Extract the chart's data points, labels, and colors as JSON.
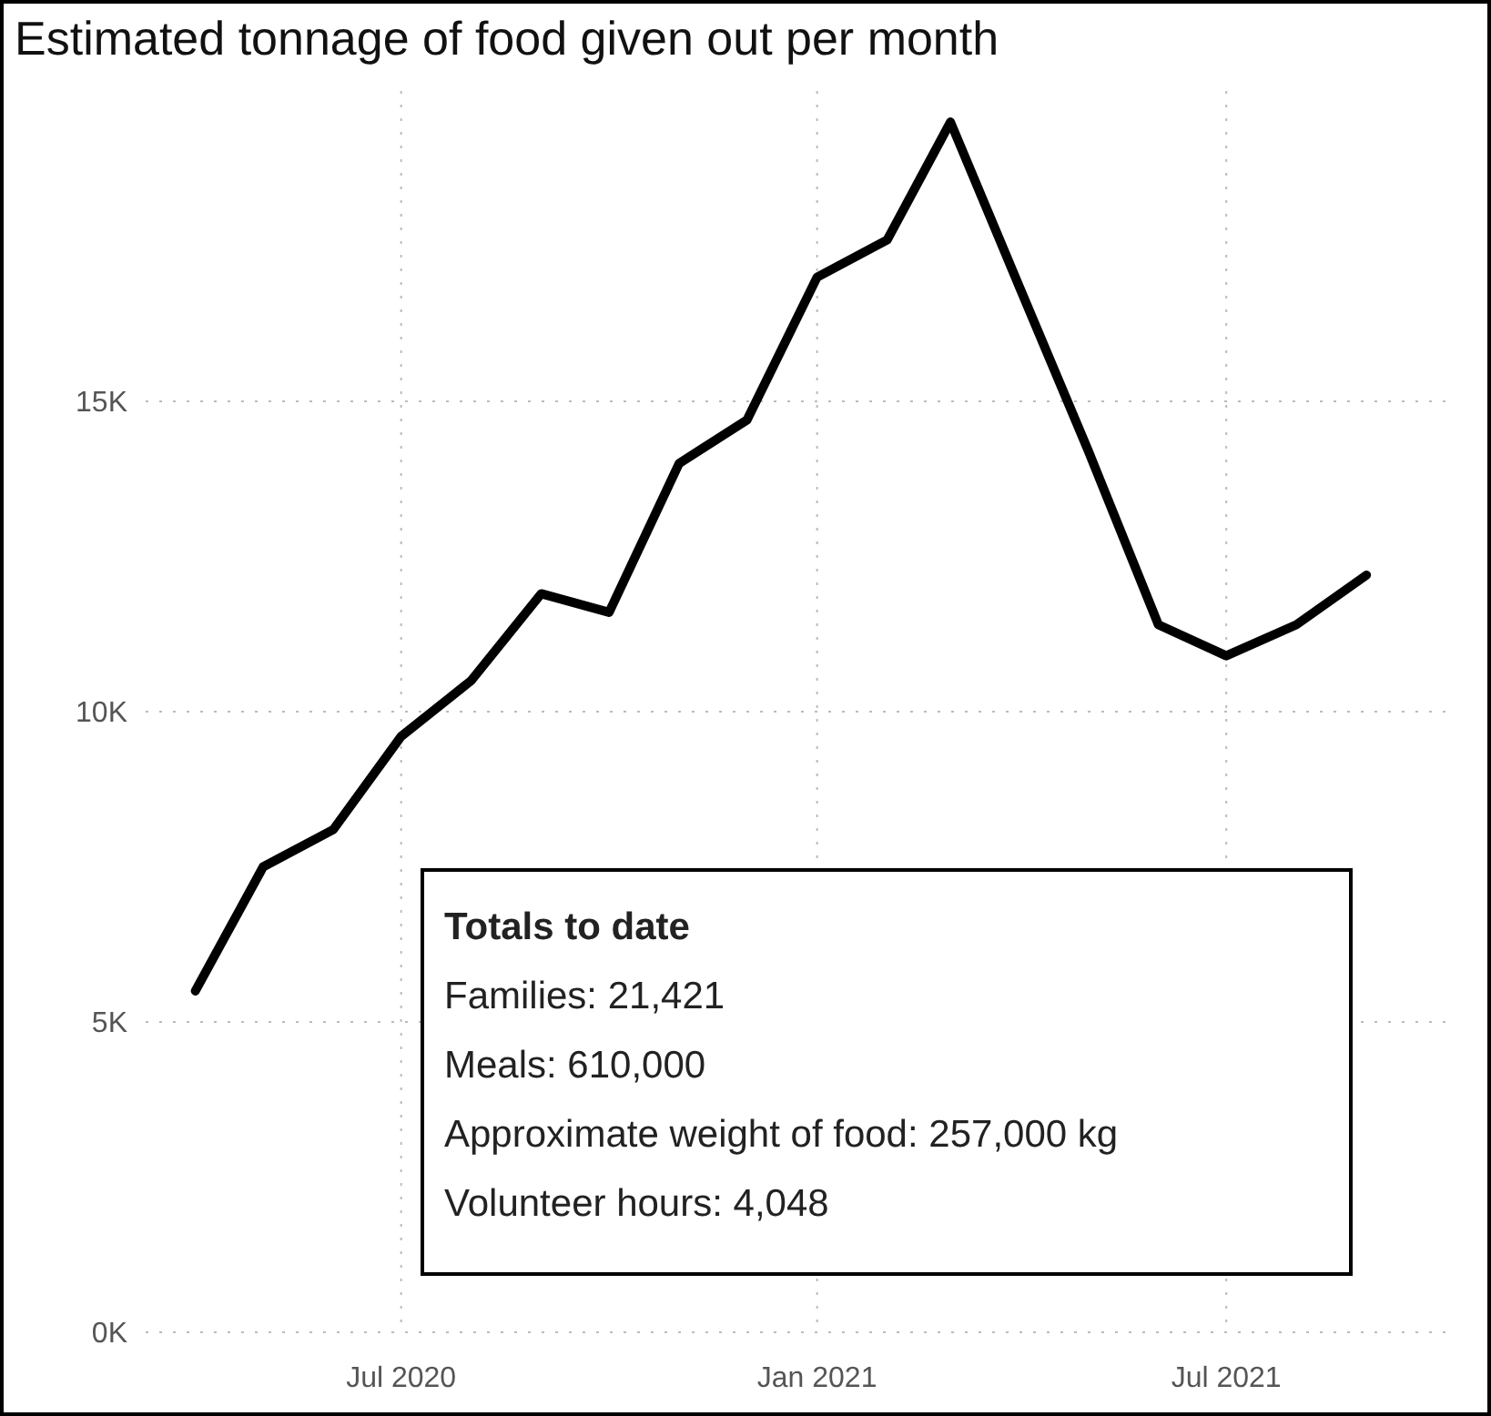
{
  "chart_data": {
    "type": "line",
    "title": "Estimated tonnage of food given out per month",
    "x": [
      "2020-04",
      "2020-05",
      "2020-06",
      "2020-07",
      "2020-08",
      "2020-09",
      "2020-10",
      "2020-11",
      "2020-12",
      "2021-01",
      "2021-02",
      "2021-03",
      "2021-04",
      "2021-05",
      "2021-06",
      "2021-07",
      "2021-08",
      "2021-09"
    ],
    "series": [
      {
        "color": "#000000",
        "values": [
          5500,
          7500,
          8100,
          9600,
          10500,
          11900,
          11600,
          14000,
          14700,
          17000,
          17600,
          19500,
          16800,
          14200,
          11400,
          10900,
          11400,
          12200
        ]
      }
    ],
    "xlim": [
      "2020-03-10",
      "2021-10-10"
    ],
    "xticks": [
      {
        "value": "2020-07",
        "label": "Jul 2020"
      },
      {
        "value": "2021-01",
        "label": "Jan 2021"
      },
      {
        "value": "2021-07",
        "label": "Jul 2021"
      }
    ],
    "ylim": [
      0,
      20000
    ],
    "yticks": [
      {
        "value": 0,
        "label": "0K"
      },
      {
        "value": 5000,
        "label": "5K"
      },
      {
        "value": 10000,
        "label": "10K"
      },
      {
        "value": 15000,
        "label": "15K"
      }
    ],
    "grid": true,
    "marker": "none",
    "line_style": "solid",
    "annotations": [
      "Totals to date",
      "Families: 21,421",
      "Meals: 610,000",
      "Approximate weight of food: 257,000 kg",
      "Volunteer hours: 4,048"
    ]
  }
}
